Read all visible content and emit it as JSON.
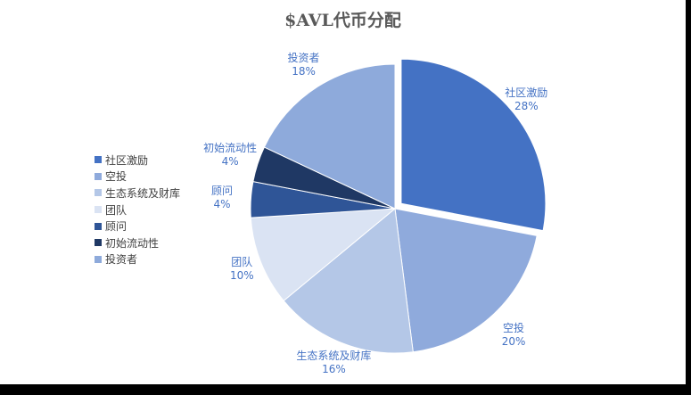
{
  "chart_data": {
    "type": "pie",
    "title": "$AVL代币分配",
    "legend_position": "left",
    "slices": [
      {
        "label": "社区激励",
        "value": 28,
        "value_label": "28%",
        "color": "#4472c4",
        "exploded": true
      },
      {
        "label": "空投",
        "value": 20,
        "value_label": "20%",
        "color": "#8faadc",
        "exploded": false
      },
      {
        "label": "生态系统及财库",
        "value": 16,
        "value_label": "16%",
        "color": "#b4c7e7",
        "exploded": false
      },
      {
        "label": "团队",
        "value": 10,
        "value_label": "10%",
        "color": "#dae3f3",
        "exploded": false
      },
      {
        "label": "顾问",
        "value": 4,
        "value_label": "4%",
        "color": "#2f5597",
        "exploded": false
      },
      {
        "label": "初始流动性",
        "value": 4,
        "value_label": "4%",
        "color": "#1f3864",
        "exploded": false
      },
      {
        "label": "投资者",
        "value": 18,
        "value_label": "18%",
        "color": "#8eaadb",
        "exploded": false
      }
    ]
  }
}
